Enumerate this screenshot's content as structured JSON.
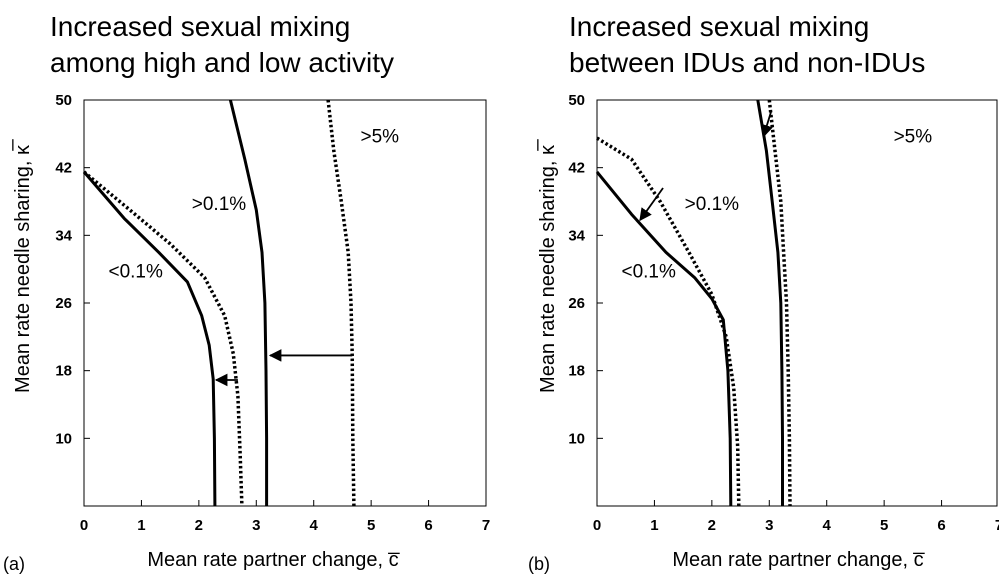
{
  "chart_data": [
    {
      "type": "line",
      "panel_label": "(a)",
      "title_lines": [
        "Increased sexual mixing",
        "among high and low activity"
      ],
      "xlabel": "Mean rate partner change, c̅",
      "ylabel": "Mean rate needle sharing, κ̅",
      "xlim": [
        0,
        7
      ],
      "ylim": [
        2,
        50
      ],
      "xticks": [
        "0",
        "1",
        "2",
        "3",
        "4",
        "5",
        "6",
        "7"
      ],
      "yticks": [
        "10",
        "18",
        "26",
        "34",
        "42",
        "50"
      ],
      "region_labels": [
        {
          "text": "<0.1%",
          "x": 0.9,
          "y": 29
        },
        {
          "text": ">0.1%",
          "x": 2.35,
          "y": 37
        },
        {
          "text": ">5%",
          "x": 5.15,
          "y": 45
        }
      ],
      "series": [
        {
          "style": "solid",
          "points": [
            [
              0.0,
              41.5
            ],
            [
              0.7,
              36
            ],
            [
              1.3,
              32
            ],
            [
              1.8,
              28.5
            ],
            [
              2.05,
              24.5
            ],
            [
              2.18,
              21
            ],
            [
              2.25,
              17
            ],
            [
              2.27,
              10
            ],
            [
              2.28,
              2
            ]
          ]
        },
        {
          "style": "dotted",
          "points": [
            [
              0.0,
              41.5
            ],
            [
              0.8,
              37
            ],
            [
              1.5,
              33
            ],
            [
              2.1,
              29
            ],
            [
              2.45,
              24.5
            ],
            [
              2.6,
              20
            ],
            [
              2.68,
              15
            ],
            [
              2.72,
              8
            ],
            [
              2.75,
              2
            ]
          ]
        },
        {
          "style": "solid",
          "points": [
            [
              2.55,
              50
            ],
            [
              2.8,
              43
            ],
            [
              3.0,
              37
            ],
            [
              3.1,
              32
            ],
            [
              3.15,
              26
            ],
            [
              3.17,
              18
            ],
            [
              3.18,
              10
            ],
            [
              3.18,
              2
            ]
          ]
        },
        {
          "style": "dotted",
          "points": [
            [
              4.25,
              50
            ],
            [
              4.35,
              44
            ],
            [
              4.48,
              38
            ],
            [
              4.6,
              32
            ],
            [
              4.65,
              26
            ],
            [
              4.67,
              20
            ],
            [
              4.68,
              10
            ],
            [
              4.7,
              2
            ]
          ]
        }
      ],
      "arrows": [
        {
          "from": [
            4.67,
            19.8
          ],
          "to": [
            3.24,
            19.8
          ]
        },
        {
          "from": [
            2.68,
            16.9
          ],
          "to": [
            2.3,
            16.9
          ]
        }
      ]
    },
    {
      "type": "line",
      "panel_label": "(b)",
      "title_lines": [
        "Increased sexual mixing",
        "between IDUs and non-IDUs"
      ],
      "xlabel": "Mean rate partner change, c̅",
      "ylabel": "Mean rate needle sharing, κ̅",
      "xlim": [
        0,
        7
      ],
      "ylim": [
        2,
        50
      ],
      "xticks": [
        "0",
        "1",
        "2",
        "3",
        "4",
        "5",
        "6",
        "7"
      ],
      "yticks": [
        "10",
        "18",
        "26",
        "34",
        "42",
        "50"
      ],
      "region_labels": [
        {
          "text": "<0.1%",
          "x": 0.9,
          "y": 29
        },
        {
          "text": ">0.1%",
          "x": 2.0,
          "y": 37
        },
        {
          "text": ">5%",
          "x": 5.5,
          "y": 45
        }
      ],
      "series": [
        {
          "style": "solid",
          "points": [
            [
              0.0,
              41.5
            ],
            [
              0.6,
              36.5
            ],
            [
              1.2,
              32
            ],
            [
              1.7,
              29
            ],
            [
              2.0,
              26.5
            ],
            [
              2.2,
              24
            ],
            [
              2.28,
              18
            ],
            [
              2.32,
              10
            ],
            [
              2.33,
              2
            ]
          ]
        },
        {
          "style": "dotted",
          "points": [
            [
              0.0,
              45.5
            ],
            [
              0.6,
              43
            ],
            [
              1.1,
              38
            ],
            [
              1.6,
              32
            ],
            [
              2.0,
              27
            ],
            [
              2.25,
              22
            ],
            [
              2.38,
              16
            ],
            [
              2.45,
              9
            ],
            [
              2.47,
              2
            ]
          ]
        },
        {
          "style": "solid",
          "points": [
            [
              2.8,
              50
            ],
            [
              2.95,
              44
            ],
            [
              3.05,
              38
            ],
            [
              3.15,
              32
            ],
            [
              3.2,
              26
            ],
            [
              3.22,
              18
            ],
            [
              3.23,
              10
            ],
            [
              3.23,
              2
            ]
          ]
        },
        {
          "style": "dotted",
          "points": [
            [
              3.0,
              50
            ],
            [
              3.1,
              44
            ],
            [
              3.2,
              38
            ],
            [
              3.25,
              32
            ],
            [
              3.3,
              26
            ],
            [
              3.33,
              18
            ],
            [
              3.35,
              10
            ],
            [
              3.36,
              2
            ]
          ]
        }
      ],
      "arrows": [
        {
          "from": [
            3.03,
            48.6
          ],
          "to": [
            2.9,
            45.7
          ]
        },
        {
          "from": [
            1.15,
            39.6
          ],
          "to": [
            0.75,
            35.8
          ]
        }
      ]
    }
  ]
}
